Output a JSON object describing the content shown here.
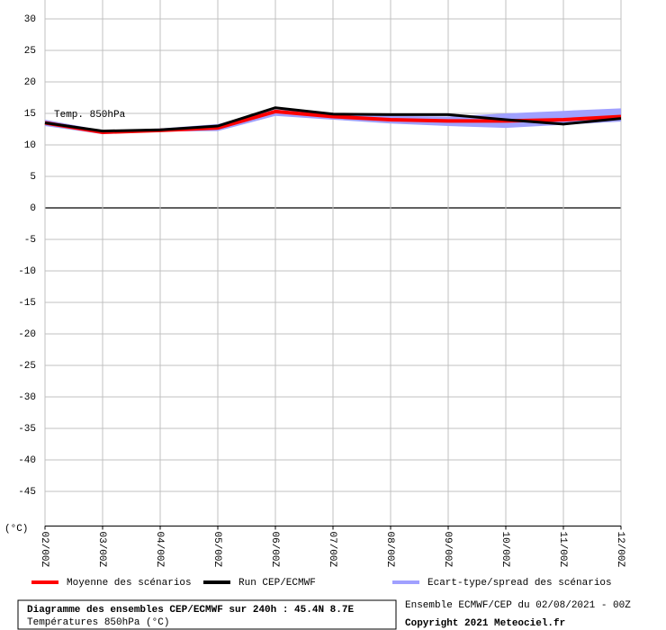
{
  "chart_data": {
    "type": "line",
    "annotation": "Temp. 850hPa",
    "y_unit": "(°C)",
    "categories": [
      "02/00Z",
      "03/00Z",
      "04/00Z",
      "05/00Z",
      "06/00Z",
      "07/00Z",
      "08/00Z",
      "09/00Z",
      "10/00Z",
      "11/00Z",
      "12/00Z"
    ],
    "band": {
      "name": "Ecart-type/spread des scénarios",
      "color": "#a0a0ff",
      "lower": [
        13.0,
        11.7,
        12.1,
        12.2,
        14.6,
        14.0,
        13.4,
        13.0,
        12.7,
        13.2,
        13.7
      ],
      "upper": [
        14.0,
        12.3,
        12.6,
        13.3,
        15.6,
        15.0,
        14.6,
        14.5,
        15.0,
        15.4,
        15.8
      ]
    },
    "series": [
      {
        "name": "Moyenne des scénarios",
        "color": "#ff0000",
        "values": [
          13.5,
          12.0,
          12.3,
          12.7,
          15.3,
          14.5,
          14.0,
          13.8,
          13.8,
          14.0,
          14.5
        ]
      },
      {
        "name": "Run CEP/ECMWF",
        "color": "#000000",
        "values": [
          13.5,
          12.2,
          12.4,
          13.0,
          15.9,
          14.9,
          14.8,
          14.8,
          14.0,
          13.3,
          14.2
        ]
      }
    ],
    "ylim": [
      -50.5,
      30
    ],
    "yticks": [
      -45,
      -40,
      -35,
      -30,
      -25,
      -20,
      -15,
      -10,
      -5,
      0,
      5,
      10,
      15,
      20,
      25,
      30
    ],
    "grid": true
  },
  "footer": {
    "title": "Diagramme des ensembles CEP/ECMWF sur 240h : 45.4N 8.7E",
    "subtitle": "Températures 850hPa (°C)",
    "info": "Ensemble ECMWF/CEP du 02/08/2021 - 00Z",
    "copyright": "Copyright 2021 Meteociel.fr"
  }
}
